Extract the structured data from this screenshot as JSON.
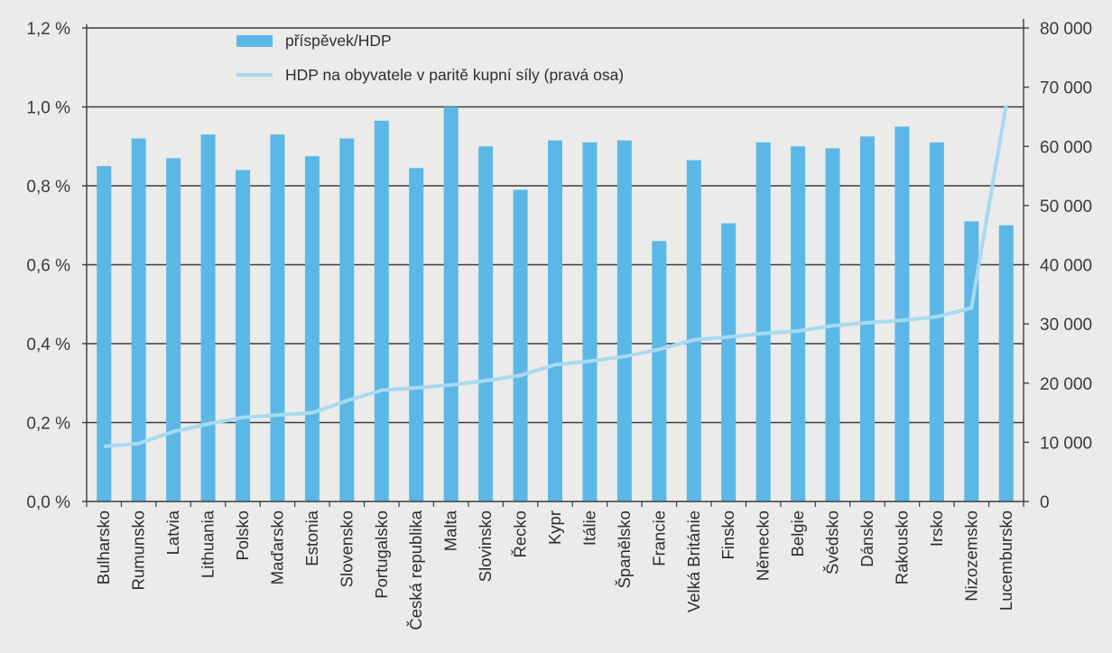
{
  "chart_data": {
    "type": "bar",
    "categories": [
      "Bulharsko",
      "Rumunsko",
      "Latvia",
      "Lithuania",
      "Polsko",
      "Maďarsko",
      "Estonia",
      "Slovensko",
      "Portugalsko",
      "Česká republika",
      "Malta",
      "Slovinsko",
      "Řecko",
      "Kypr",
      "Itálie",
      "Španělsko",
      "Francie",
      "Velká Británie",
      "Finsko",
      "Německo",
      "Belgie",
      "Švédsko",
      "Dánsko",
      "Rakousko",
      "Irsko",
      "Nizozemsko",
      "Lucembursko"
    ],
    "series": [
      {
        "name": "příspěvek/HDP",
        "type": "bar",
        "axis": "left",
        "color": "#5bb8e6",
        "values": [
          0.85,
          0.92,
          0.87,
          0.93,
          0.84,
          0.93,
          0.875,
          0.92,
          0.965,
          0.845,
          1.0,
          0.9,
          0.79,
          0.915,
          0.91,
          0.915,
          0.66,
          0.865,
          0.705,
          0.91,
          0.9,
          0.895,
          0.925,
          0.95,
          0.91,
          0.71,
          0.7
        ]
      },
      {
        "name": "HDP na obyvatele v paritě kupní síly (pravá osa)",
        "type": "line",
        "axis": "right",
        "color": "#a8daf2",
        "values": [
          9300,
          9800,
          11800,
          13100,
          14200,
          14600,
          15000,
          17000,
          18800,
          19200,
          19700,
          20400,
          21300,
          23100,
          23700,
          24500,
          25700,
          27300,
          27800,
          28400,
          28800,
          29700,
          30200,
          30600,
          31200,
          32700,
          67000
        ]
      }
    ],
    "y_left": {
      "ticks": [
        "0,0 %",
        "0,2 %",
        "0,4 %",
        "0,6 %",
        "0,8 %",
        "1,0 %",
        "1,2 %"
      ],
      "ylim": [
        0,
        1.2
      ]
    },
    "y_right": {
      "ticks": [
        "0",
        "10 000",
        "20 000",
        "30 000",
        "40 000",
        "50 000",
        "60 000",
        "70 000",
        "80 000"
      ],
      "ylim": [
        0,
        80000
      ]
    },
    "legend": {
      "placement": "top",
      "items": [
        "příspěvek/HDP",
        "HDP na obyvatele v paritě kupní síly (pravá osa)"
      ]
    },
    "grid": true
  }
}
